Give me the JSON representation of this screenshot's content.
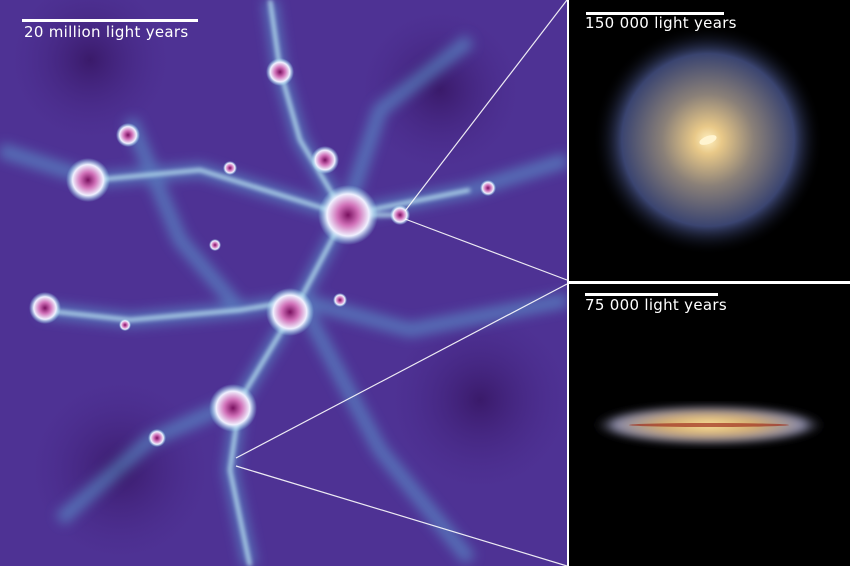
{
  "cosmic_web_panel": {
    "scale_label": "20 million light years"
  },
  "face_on_panel": {
    "scale_label": "150 000 light years"
  },
  "edge_on_panel": {
    "scale_label": "75 000 light years"
  },
  "colors": {
    "web_background": "#4a2a8c",
    "filament": "#8fe0f0",
    "halo_core": "#c04fa0",
    "galaxy_core": "#f3d9a0",
    "galaxy_arms": "#6a7bc0"
  }
}
